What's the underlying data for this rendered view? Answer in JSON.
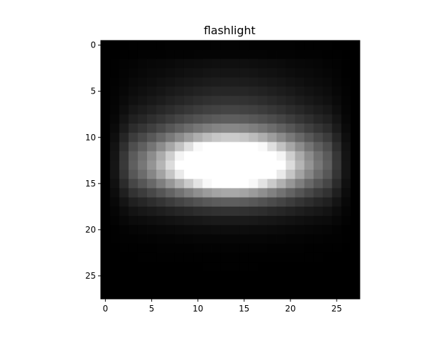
{
  "chart_data": {
    "type": "heatmap",
    "title": "flashlight",
    "xlabel": "",
    "ylabel": "",
    "colormap": "gray",
    "grid": false,
    "rows": 28,
    "cols": 28,
    "xlim": [
      -0.5,
      27.5
    ],
    "ylim": [
      27.5,
      -0.5
    ],
    "xticks": [
      0,
      5,
      10,
      15,
      20,
      25
    ],
    "yticks": [
      0,
      5,
      10,
      15,
      20,
      25
    ],
    "value_range": [
      0,
      255
    ],
    "col_peak": 13.5,
    "row_peak": 13.0,
    "colors": {
      "background": "#ffffff",
      "axis": "#000000"
    }
  }
}
